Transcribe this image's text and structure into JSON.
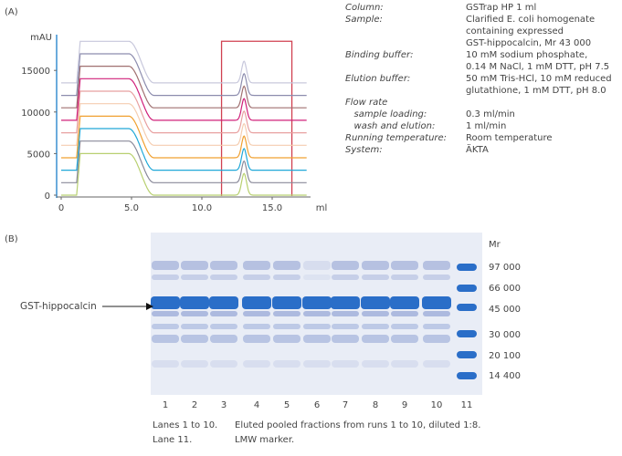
{
  "panel_a_label": "(A)",
  "panel_b_label": "(B)",
  "chart_data": {
    "type": "line",
    "ylabel": "mAU",
    "xlabel": "ml",
    "xlim": [
      -0.3,
      17.5
    ],
    "ylim": [
      0,
      19000
    ],
    "xticks": [
      "0",
      "5.0",
      "10.0",
      "15.0"
    ],
    "xtick_values": [
      0,
      5,
      10,
      15
    ],
    "yticks": [
      "0",
      "5000",
      "10000",
      "15000"
    ],
    "ytick_values": [
      0,
      5000,
      10000,
      15000
    ],
    "series": [
      {
        "name": "run 1",
        "color": "#b8d070",
        "baseline": 0
      },
      {
        "name": "run 2",
        "color": "#8a8a9a",
        "baseline": 1500
      },
      {
        "name": "run 3",
        "color": "#20a8d8",
        "baseline": 3000
      },
      {
        "name": "run 4",
        "color": "#f0a030",
        "baseline": 4500
      },
      {
        "name": "run 5",
        "color": "#f5cdb0",
        "baseline": 6000
      },
      {
        "name": "run 6",
        "color": "#e8a0a0",
        "baseline": 7500
      },
      {
        "name": "run 7",
        "color": "#d0207a",
        "baseline": 9000
      },
      {
        "name": "run 8",
        "color": "#a07070",
        "baseline": 10500
      },
      {
        "name": "run 9",
        "color": "#8c8cae",
        "baseline": 12000
      },
      {
        "name": "run 10",
        "color": "#c8c8dc",
        "baseline": 13500
      }
    ],
    "loading_plateau_mAU": 5000,
    "loading_start_ml": 1.3,
    "loading_end_ml": 4.8,
    "wash_end_ml": 6.6,
    "elution_peak_ml": 13.0,
    "elution_peak_mAU": 2600,
    "highlight_box": {
      "x": [
        11.4,
        16.4
      ],
      "y": [
        0,
        18500
      ],
      "color": "#d04050"
    }
  },
  "conditions": [
    {
      "label": "Column:",
      "value": [
        "GSTrap HP 1 ml"
      ]
    },
    {
      "label": "Sample:",
      "value": [
        "Clarified E. coli homogenate",
        "containing expressed",
        "GST-hippocalcin, Mr 43 000"
      ]
    },
    {
      "label": "Binding buffer:",
      "value": [
        "10 mM sodium phosphate,",
        "0.14 M NaCl, 1 mM DTT, pH 7.5"
      ]
    },
    {
      "label": "Elution buffer:",
      "value": [
        "50 mM Tris-HCl, 10 mM reduced",
        "glutathione, 1 mM DTT, pH 8.0"
      ]
    },
    {
      "label": "Flow rate",
      "value": [
        ""
      ]
    },
    {
      "label": "   sample loading:",
      "value": [
        "0.3 ml/min"
      ]
    },
    {
      "label": "   wash and elution:",
      "value": [
        "1 ml/min"
      ]
    },
    {
      "label": "Running temperature:",
      "value": [
        "Room temperature"
      ]
    },
    {
      "label": "System:",
      "value": [
        "ÄKTA"
      ]
    }
  ],
  "gel": {
    "band_label": "GST-hippocalcin",
    "mr_label": "Mr",
    "markers": [
      "97 000",
      "66 000",
      "45 000",
      "30 000",
      "20 100",
      "14 400"
    ],
    "lanes": [
      "1",
      "2",
      "3",
      "4",
      "5",
      "6",
      "7",
      "8",
      "9",
      "10",
      "11"
    ],
    "caption": [
      {
        "lanes": "Lanes 1 to 10.",
        "text": "Eluted pooled fractions from runs 1 to 10, diluted 1:8."
      },
      {
        "lanes": "Lane 11.",
        "text": "LMW marker."
      }
    ]
  }
}
